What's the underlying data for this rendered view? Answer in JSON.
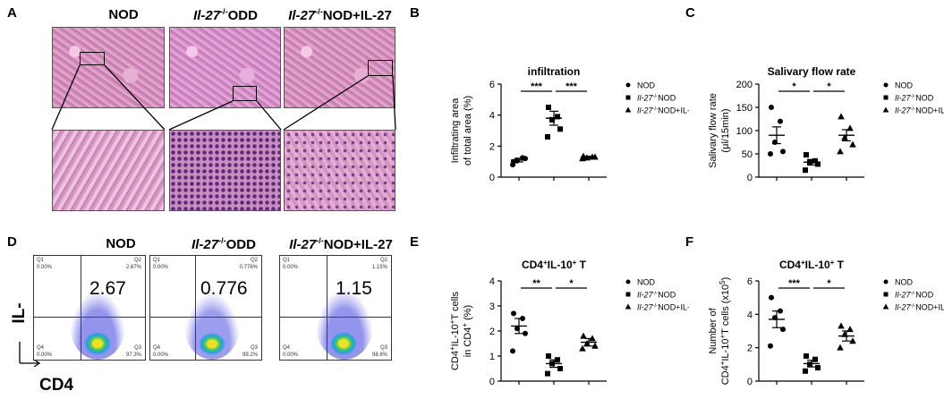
{
  "panels": {
    "A": {
      "letter": "A",
      "columns": [
        {
          "title_italic": "",
          "title_rest": "NOD"
        },
        {
          "title_italic": "Il-27",
          "title_sup": "-/-",
          "title_rest": "ODD"
        },
        {
          "title_italic": "Il-27",
          "title_sup": "-/-",
          "title_rest": "NOD+IL-27"
        }
      ]
    },
    "B": {
      "letter": "B"
    },
    "C": {
      "letter": "C"
    },
    "D": {
      "letter": "D",
      "y_axis_label": "IL-10",
      "x_axis_label": "CD4",
      "columns": [
        {
          "title_italic": "",
          "title_rest": "NOD",
          "big_value": "2.67",
          "q1": "Q1",
          "q1v": "0.00%",
          "q2": "Q2",
          "q2v": "2.67%",
          "q3": "Q3",
          "q3v": "97.3%",
          "q4": "Q4",
          "q4v": "0.00%"
        },
        {
          "title_italic": "Il-27",
          "title_sup": "-/-",
          "title_rest": "ODD",
          "big_value": "0.776",
          "q1": "Q1",
          "q1v": "0.00%",
          "q2": "Q2",
          "q2v": "0.776%",
          "q3": "Q3",
          "q3v": "99.2%",
          "q4": "Q4",
          "q4v": "0.00%"
        },
        {
          "title_italic": "Il-27",
          "title_sup": "-/-",
          "title_rest": "NOD+IL-27",
          "big_value": "1.15",
          "q1": "Q1",
          "q1v": "0.00%",
          "q2": "Q2",
          "q2v": "1.15%",
          "q3": "Q3",
          "q3v": "98.8%",
          "q4": "Q4",
          "q4v": "0.00%"
        }
      ]
    },
    "E": {
      "letter": "E"
    },
    "F": {
      "letter": "F"
    }
  },
  "legend": {
    "items": [
      {
        "marker": "circle",
        "label": "NOD"
      },
      {
        "marker": "square",
        "label_italic": "Il-27",
        "label_sup": "-/-",
        "label_rest": "NOD"
      },
      {
        "marker": "triangle",
        "label_italic": "Il-27",
        "label_sup": "-/-",
        "label_rest": "NOD+IL-27"
      }
    ]
  },
  "chart_data": [
    {
      "id": "B",
      "type": "scatter",
      "title": "infiltration",
      "ylabel_lines": [
        "Infiltrating area",
        "of total area (%)"
      ],
      "ylim": [
        0,
        6
      ],
      "yticks": [
        0,
        2,
        4,
        6
      ],
      "groups": [
        {
          "marker": "circle",
          "mean": 1.1,
          "sem": 0.12,
          "points": [
            1.0,
            1.25,
            1.05,
            1.2,
            0.8
          ]
        },
        {
          "marker": "square",
          "mean": 3.8,
          "sem": 0.45,
          "points": [
            4.5,
            3.9,
            3.7,
            3.1,
            2.6
          ]
        },
        {
          "marker": "triangle",
          "mean": 1.3,
          "sem": 0.05,
          "points": [
            1.35,
            1.3,
            1.25,
            1.3,
            1.2
          ]
        }
      ],
      "significance": [
        {
          "from": 0,
          "to": 1,
          "label": "***"
        },
        {
          "from": 1,
          "to": 2,
          "label": "***"
        }
      ]
    },
    {
      "id": "C",
      "type": "scatter",
      "title": "Salivary flow rate",
      "ylabel_lines": [
        "Salivary flow rate",
        "(μl/15min)"
      ],
      "ylim": [
        0,
        200
      ],
      "yticks": [
        0,
        50,
        100,
        150,
        200
      ],
      "groups": [
        {
          "marker": "circle",
          "mean": 90,
          "sem": 18,
          "points": [
            150,
            120,
            75,
            55,
            50
          ]
        },
        {
          "marker": "square",
          "mean": 32,
          "sem": 6,
          "points": [
            48,
            35,
            32,
            28,
            15
          ]
        },
        {
          "marker": "triangle",
          "mean": 90,
          "sem": 12,
          "points": [
            130,
            105,
            85,
            70,
            55
          ]
        }
      ],
      "significance": [
        {
          "from": 0,
          "to": 1,
          "label": "*"
        },
        {
          "from": 1,
          "to": 2,
          "label": "*"
        }
      ]
    },
    {
      "id": "E",
      "type": "scatter",
      "title": "CD4+IL-10+ T",
      "title_parts": [
        "CD4",
        "+",
        "IL-10",
        "+",
        " T"
      ],
      "ylabel_lines": [
        "CD4+IL-10+T cells",
        "in CD4+ (%)"
      ],
      "ylim": [
        0,
        4
      ],
      "yticks": [
        0,
        1,
        2,
        3,
        4
      ],
      "groups": [
        {
          "marker": "circle",
          "mean": 2.2,
          "sem": 0.3,
          "points": [
            2.7,
            2.5,
            2.1,
            1.9,
            1.2
          ]
        },
        {
          "marker": "square",
          "mean": 0.7,
          "sem": 0.15,
          "points": [
            1.0,
            0.85,
            0.7,
            0.5,
            0.3
          ]
        },
        {
          "marker": "triangle",
          "mean": 1.55,
          "sem": 0.15,
          "points": [
            1.8,
            1.7,
            1.5,
            1.4,
            1.3
          ]
        }
      ],
      "significance": [
        {
          "from": 0,
          "to": 1,
          "label": "**"
        },
        {
          "from": 1,
          "to": 2,
          "label": "*"
        }
      ]
    },
    {
      "id": "F",
      "type": "scatter",
      "title": "CD4+IL-10+ T",
      "title_parts": [
        "CD4",
        "+",
        "IL-10",
        "+",
        " T"
      ],
      "ylabel_lines": [
        "Number of",
        "CD4+IL-10+T cells (x10^5)"
      ],
      "ylim": [
        0,
        6
      ],
      "yticks": [
        0,
        2,
        4,
        6
      ],
      "groups": [
        {
          "marker": "circle",
          "mean": 3.7,
          "sem": 0.5,
          "points": [
            5.0,
            4.2,
            3.8,
            3.1,
            2.1
          ]
        },
        {
          "marker": "square",
          "mean": 1.05,
          "sem": 0.2,
          "points": [
            1.5,
            1.3,
            1.0,
            0.8,
            0.6
          ]
        },
        {
          "marker": "triangle",
          "mean": 2.7,
          "sem": 0.3,
          "points": [
            3.3,
            3.1,
            2.8,
            2.4,
            2.0
          ]
        }
      ],
      "significance": [
        {
          "from": 0,
          "to": 1,
          "label": "***"
        },
        {
          "from": 1,
          "to": 2,
          "label": "*"
        }
      ]
    }
  ]
}
